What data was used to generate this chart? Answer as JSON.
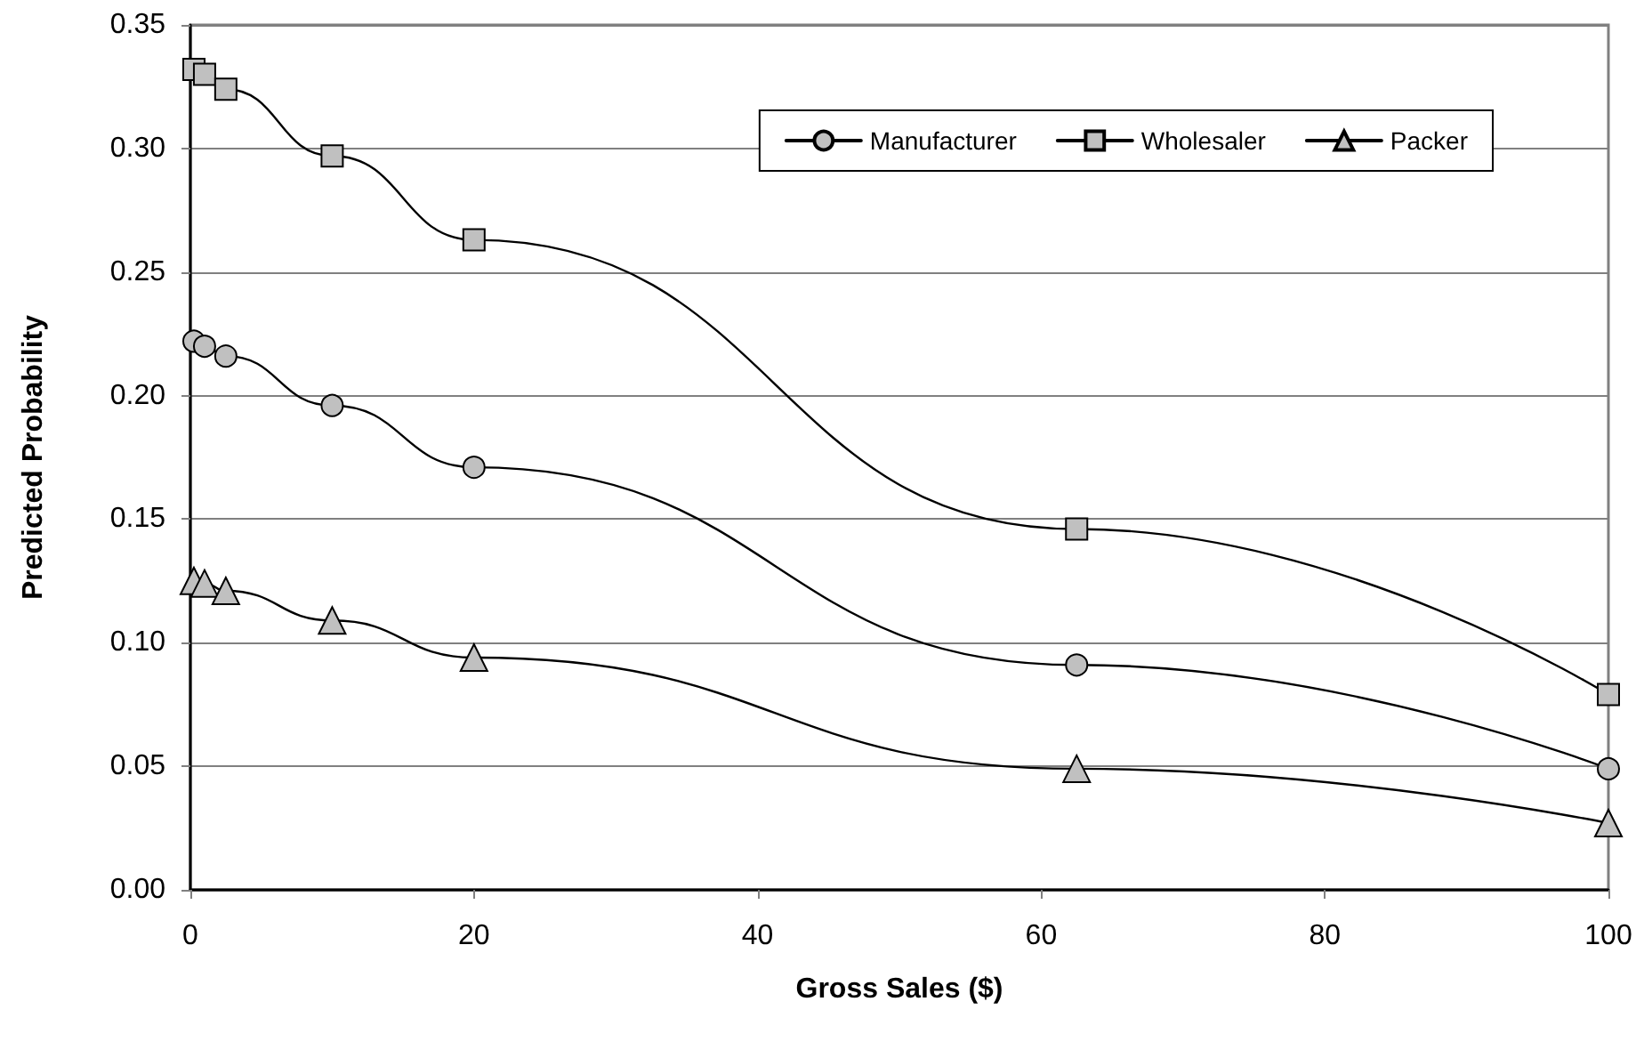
{
  "chart_data": {
    "type": "line",
    "xlabel": "Gross Sales ($)",
    "ylabel": "Predicted Probability",
    "x": [
      0.25,
      1,
      2.5,
      10,
      20,
      62.5,
      100
    ],
    "series": [
      {
        "name": "Manufacturer",
        "color": "#c0c0c0",
        "marker": "circle",
        "values": [
          0.222,
          0.22,
          0.216,
          0.196,
          0.171,
          0.091,
          0.049
        ]
      },
      {
        "name": "Wholesaler",
        "color": "#c0c0c0",
        "marker": "square",
        "values": [
          0.332,
          0.33,
          0.324,
          0.297,
          0.263,
          0.146,
          0.079
        ]
      },
      {
        "name": "Packer",
        "color": "#c0c0c0",
        "marker": "triangle",
        "values": [
          0.125,
          0.124,
          0.121,
          0.109,
          0.094,
          0.049,
          0.027
        ]
      }
    ],
    "xlim": [
      0,
      100
    ],
    "xticks": [
      0,
      20,
      40,
      60,
      80,
      100
    ],
    "ylim": [
      0,
      0.35
    ],
    "yticks": [
      {
        "value": 0,
        "label": "0.00"
      },
      {
        "value": 0.05,
        "label": "0.05"
      },
      {
        "value": 0.1,
        "label": "0.10"
      },
      {
        "value": 0.15,
        "label": "0.15"
      },
      {
        "value": 0.2,
        "label": "0.20"
      },
      {
        "value": 0.25,
        "label": "0.25"
      },
      {
        "value": 0.3,
        "label": "0.30"
      },
      {
        "value": 0.35,
        "label": "0.35"
      }
    ],
    "grid": "y",
    "legend": "top right",
    "line_style": "solid"
  }
}
